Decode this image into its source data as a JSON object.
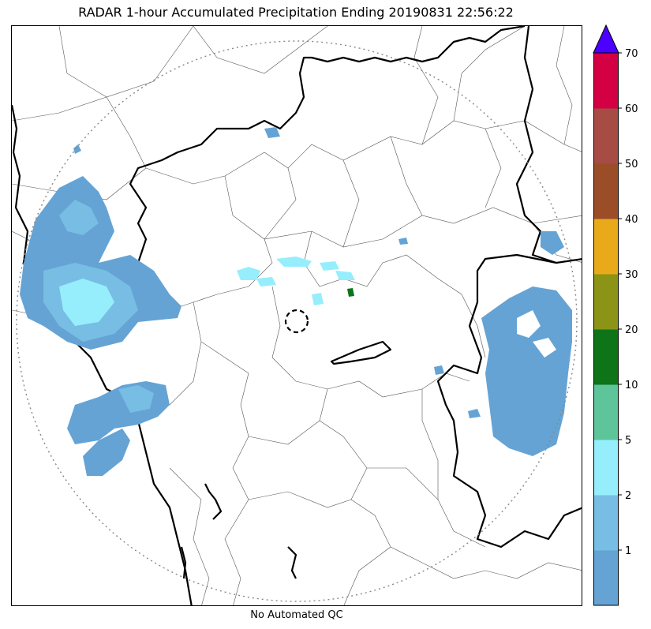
{
  "title": "RADAR 1-hour Accumulated Precipitation Ending 20190831 22:56:22",
  "footer": "No Automated QC",
  "colorbar": {
    "levels": [
      {
        "label": "",
        "color": "#65a3d4"
      },
      {
        "label": "1",
        "color": "#77bde4"
      },
      {
        "label": "2",
        "color": "#96eefc"
      },
      {
        "label": "5",
        "color": "#5ec49a"
      },
      {
        "label": "10",
        "color": "#0d7417"
      },
      {
        "label": "20",
        "color": "#8b9416"
      },
      {
        "label": "30",
        "color": "#e8aa1b"
      },
      {
        "label": "40",
        "color": "#9b4d28"
      },
      {
        "label": "50",
        "color": "#a64c45"
      },
      {
        "label": "60",
        "color": "#d30044"
      }
    ],
    "top_label": "70",
    "extend_color": "#4c00ff"
  },
  "map": {
    "range_ring_color": "#888888",
    "radar_site_marker": "dashed-circle",
    "precip_light": "#65a3d4",
    "precip_medium": "#77bde4",
    "precip_cyan": "#96eefc",
    "precip_green": "#0d7417"
  }
}
